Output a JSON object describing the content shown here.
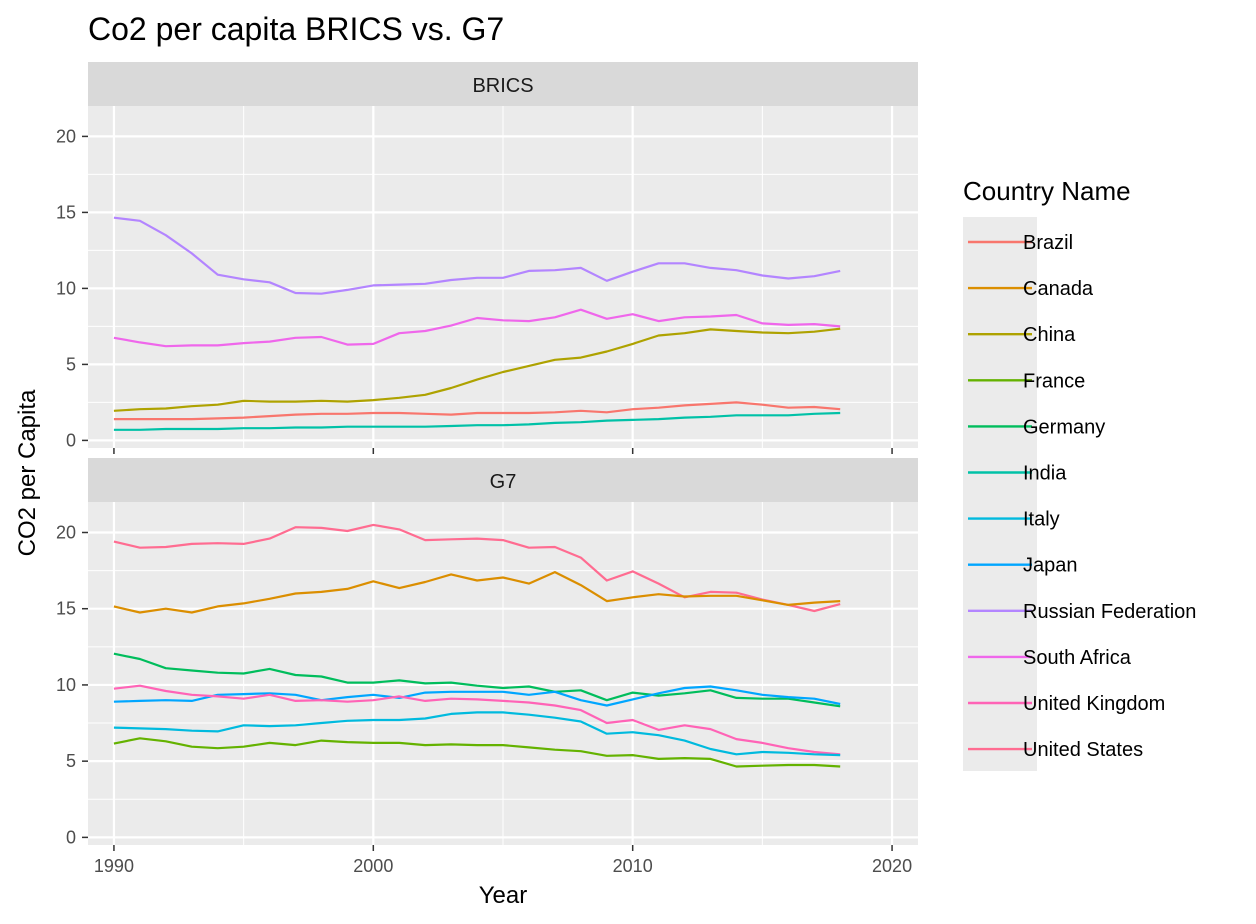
{
  "chart_data": {
    "type": "line",
    "title": "Co2 per capita BRICS vs. G7",
    "xlabel": "Year",
    "ylabel": "CO2 per Capita",
    "xlim": [
      1989,
      2021
    ],
    "ylim": [
      -0.5,
      22
    ],
    "x_ticks": [
      1990,
      2000,
      2010,
      2020
    ],
    "y_ticks": [
      0,
      5,
      10,
      15,
      20
    ],
    "grid": true,
    "legend": {
      "title": "Country Name",
      "placement": "right"
    },
    "colors": {
      "Brazil": "#F8766D",
      "Canada": "#DB8E00",
      "China": "#AEA200",
      "France": "#64B200",
      "Germany": "#00BD5C",
      "India": "#00C1A7",
      "Italy": "#00BADE",
      "Japan": "#00A6FF",
      "Russian Federation": "#B385FF",
      "South Africa": "#EF67EB",
      "United Kingdom": "#FF63B6",
      "United States": "#FF6C91"
    },
    "legend_order": [
      "Brazil",
      "Canada",
      "China",
      "France",
      "Germany",
      "India",
      "Italy",
      "Japan",
      "Russian Federation",
      "South Africa",
      "United Kingdom",
      "United States"
    ],
    "x": [
      1990,
      1991,
      1992,
      1993,
      1994,
      1995,
      1996,
      1997,
      1998,
      1999,
      2000,
      2001,
      2002,
      2003,
      2004,
      2005,
      2006,
      2007,
      2008,
      2009,
      2010,
      2011,
      2012,
      2013,
      2014,
      2015,
      2016,
      2017,
      2018
    ],
    "facets": [
      {
        "name": "BRICS",
        "series": [
          {
            "name": "Russian Federation",
            "color_key": "Russian Federation",
            "values": [
              14.65,
              14.45,
              13.5,
              12.3,
              10.9,
              10.6,
              10.4,
              9.7,
              9.65,
              9.9,
              10.2,
              10.25,
              10.3,
              10.55,
              10.7,
              10.7,
              11.15,
              11.2,
              11.35,
              10.5,
              11.1,
              11.65,
              11.65,
              11.35,
              11.2,
              10.85,
              10.65,
              10.8,
              11.15
            ]
          },
          {
            "name": "South Africa",
            "color_key": "South Africa",
            "values": [
              6.75,
              6.45,
              6.2,
              6.25,
              6.25,
              6.4,
              6.5,
              6.75,
              6.8,
              6.3,
              6.35,
              7.05,
              7.2,
              7.55,
              8.05,
              7.9,
              7.85,
              8.1,
              8.6,
              8.0,
              8.3,
              7.85,
              8.1,
              8.15,
              8.25,
              7.7,
              7.6,
              7.65,
              7.5
            ]
          },
          {
            "name": "China",
            "color_key": "China",
            "values": [
              1.95,
              2.05,
              2.1,
              2.25,
              2.35,
              2.6,
              2.55,
              2.55,
              2.6,
              2.55,
              2.65,
              2.8,
              3.0,
              3.45,
              4.0,
              4.5,
              4.9,
              5.3,
              5.45,
              5.85,
              6.35,
              6.9,
              7.05,
              7.3,
              7.2,
              7.1,
              7.05,
              7.15,
              7.35
            ]
          },
          {
            "name": "Brazil",
            "color_key": "Brazil",
            "values": [
              1.4,
              1.4,
              1.4,
              1.4,
              1.45,
              1.5,
              1.6,
              1.7,
              1.75,
              1.75,
              1.8,
              1.8,
              1.75,
              1.7,
              1.8,
              1.8,
              1.8,
              1.85,
              1.95,
              1.85,
              2.05,
              2.15,
              2.3,
              2.4,
              2.5,
              2.35,
              2.15,
              2.2,
              2.05
            ]
          },
          {
            "name": "India",
            "color_key": "India",
            "values": [
              0.7,
              0.7,
              0.75,
              0.75,
              0.75,
              0.8,
              0.8,
              0.85,
              0.85,
              0.9,
              0.9,
              0.9,
              0.9,
              0.95,
              1.0,
              1.0,
              1.05,
              1.15,
              1.2,
              1.3,
              1.35,
              1.4,
              1.5,
              1.55,
              1.65,
              1.65,
              1.65,
              1.75,
              1.8
            ]
          }
        ]
      },
      {
        "name": "G7",
        "series": [
          {
            "name": "United States",
            "color_key": "United States",
            "values": [
              19.4,
              19.0,
              19.05,
              19.25,
              19.3,
              19.25,
              19.6,
              20.35,
              20.3,
              20.1,
              20.5,
              20.2,
              19.5,
              19.55,
              19.6,
              19.5,
              19.0,
              19.05,
              18.35,
              16.85,
              17.45,
              16.65,
              15.75,
              16.1,
              16.05,
              15.6,
              15.25,
              14.85,
              15.3
            ]
          },
          {
            "name": "Canada",
            "color_key": "Canada",
            "values": [
              15.15,
              14.75,
              15.0,
              14.75,
              15.15,
              15.35,
              15.65,
              16.0,
              16.1,
              16.3,
              16.8,
              16.35,
              16.75,
              17.25,
              16.85,
              17.05,
              16.65,
              17.4,
              16.55,
              15.5,
              15.75,
              15.95,
              15.8,
              15.85,
              15.85,
              15.55,
              15.25,
              15.4,
              15.5
            ]
          },
          {
            "name": "Germany",
            "color_key": "Germany",
            "values": [
              12.05,
              11.7,
              11.1,
              10.95,
              10.8,
              10.75,
              11.05,
              10.65,
              10.55,
              10.15,
              10.15,
              10.3,
              10.1,
              10.15,
              9.95,
              9.8,
              9.9,
              9.55,
              9.65,
              9.0,
              9.5,
              9.3,
              9.45,
              9.65,
              9.15,
              9.1,
              9.1,
              8.85,
              8.6
            ]
          },
          {
            "name": "Japan",
            "color_key": "Japan",
            "values": [
              8.9,
              8.95,
              9.0,
              8.95,
              9.35,
              9.4,
              9.45,
              9.35,
              9.0,
              9.2,
              9.35,
              9.15,
              9.5,
              9.55,
              9.55,
              9.55,
              9.35,
              9.55,
              9.0,
              8.65,
              9.05,
              9.45,
              9.8,
              9.9,
              9.65,
              9.35,
              9.2,
              9.1,
              8.75
            ]
          },
          {
            "name": "United Kingdom",
            "color_key": "United Kingdom",
            "values": [
              9.75,
              9.95,
              9.6,
              9.35,
              9.25,
              9.1,
              9.35,
              8.95,
              9.0,
              8.9,
              9.0,
              9.25,
              8.95,
              9.1,
              9.05,
              8.95,
              8.85,
              8.65,
              8.35,
              7.5,
              7.7,
              7.05,
              7.35,
              7.1,
              6.45,
              6.2,
              5.85,
              5.6,
              5.45
            ]
          },
          {
            "name": "Italy",
            "color_key": "Italy",
            "values": [
              7.2,
              7.15,
              7.1,
              7.0,
              6.95,
              7.35,
              7.3,
              7.35,
              7.5,
              7.65,
              7.7,
              7.7,
              7.8,
              8.1,
              8.2,
              8.2,
              8.05,
              7.85,
              7.6,
              6.8,
              6.9,
              6.7,
              6.35,
              5.8,
              5.45,
              5.6,
              5.55,
              5.45,
              5.4
            ]
          },
          {
            "name": "France",
            "color_key": "France",
            "values": [
              6.15,
              6.5,
              6.3,
              5.95,
              5.85,
              5.95,
              6.2,
              6.05,
              6.35,
              6.25,
              6.2,
              6.2,
              6.05,
              6.1,
              6.05,
              6.05,
              5.9,
              5.75,
              5.65,
              5.35,
              5.4,
              5.15,
              5.2,
              5.15,
              4.65,
              4.7,
              4.75,
              4.75,
              4.65
            ]
          }
        ]
      }
    ]
  }
}
